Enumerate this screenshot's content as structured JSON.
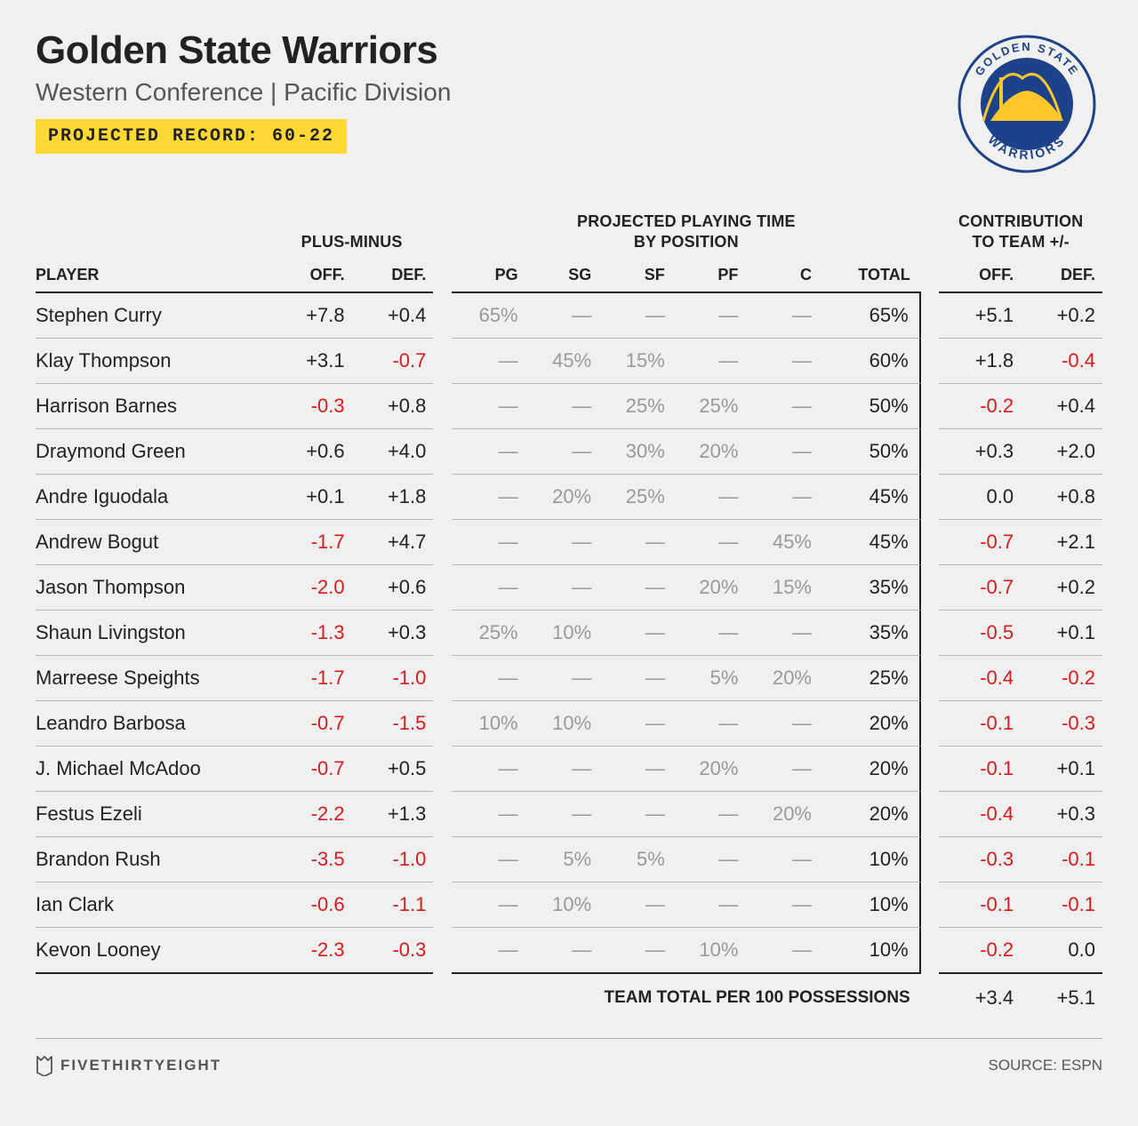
{
  "header": {
    "team_name": "Golden State Warriors",
    "subtitle": "Western Conference | Pacific Division",
    "record_label": "PROJECTED RECORD: 60-22",
    "logo": {
      "top_text": "GOLDEN STATE",
      "bottom_text": "WARRIORS",
      "primary_color": "#1d428a",
      "accent_color": "#ffc72c"
    }
  },
  "labels": {
    "plus_minus": "PLUS-MINUS",
    "playing_time": "PROJECTED PLAYING TIME BY POSITION",
    "contribution": "CONTRIBUTION TO TEAM +/-",
    "player": "PLAYER",
    "off": "OFF.",
    "def": "DEF.",
    "total": "TOTAL",
    "pg": "PG",
    "sg": "SG",
    "sf": "SF",
    "pf": "PF",
    "c": "C",
    "team_total": "TEAM TOTAL PER 100 POSSESSIONS"
  },
  "players": [
    {
      "name": "Stephen Curry",
      "pm_off": "+7.8",
      "pm_def": "+0.4",
      "pg": "65%",
      "sg": "—",
      "sf": "—",
      "pf": "—",
      "c": "—",
      "total": "65%",
      "c_off": "+5.1",
      "c_def": "+0.2"
    },
    {
      "name": "Klay Thompson",
      "pm_off": "+3.1",
      "pm_def": "-0.7",
      "pg": "—",
      "sg": "45%",
      "sf": "15%",
      "pf": "—",
      "c": "—",
      "total": "60%",
      "c_off": "+1.8",
      "c_def": "-0.4"
    },
    {
      "name": "Harrison Barnes",
      "pm_off": "-0.3",
      "pm_def": "+0.8",
      "pg": "—",
      "sg": "—",
      "sf": "25%",
      "pf": "25%",
      "c": "—",
      "total": "50%",
      "c_off": "-0.2",
      "c_def": "+0.4"
    },
    {
      "name": "Draymond Green",
      "pm_off": "+0.6",
      "pm_def": "+4.0",
      "pg": "—",
      "sg": "—",
      "sf": "30%",
      "pf": "20%",
      "c": "—",
      "total": "50%",
      "c_off": "+0.3",
      "c_def": "+2.0"
    },
    {
      "name": "Andre Iguodala",
      "pm_off": "+0.1",
      "pm_def": "+1.8",
      "pg": "—",
      "sg": "20%",
      "sf": "25%",
      "pf": "—",
      "c": "—",
      "total": "45%",
      "c_off": "0.0",
      "c_def": "+0.8"
    },
    {
      "name": "Andrew Bogut",
      "pm_off": "-1.7",
      "pm_def": "+4.7",
      "pg": "—",
      "sg": "—",
      "sf": "—",
      "pf": "—",
      "c": "45%",
      "total": "45%",
      "c_off": "-0.7",
      "c_def": "+2.1"
    },
    {
      "name": "Jason Thompson",
      "pm_off": "-2.0",
      "pm_def": "+0.6",
      "pg": "—",
      "sg": "—",
      "sf": "—",
      "pf": "20%",
      "c": "15%",
      "total": "35%",
      "c_off": "-0.7",
      "c_def": "+0.2"
    },
    {
      "name": "Shaun Livingston",
      "pm_off": "-1.3",
      "pm_def": "+0.3",
      "pg": "25%",
      "sg": "10%",
      "sf": "—",
      "pf": "—",
      "c": "—",
      "total": "35%",
      "c_off": "-0.5",
      "c_def": "+0.1"
    },
    {
      "name": "Marreese Speights",
      "pm_off": "-1.7",
      "pm_def": "-1.0",
      "pg": "—",
      "sg": "—",
      "sf": "—",
      "pf": "5%",
      "c": "20%",
      "total": "25%",
      "c_off": "-0.4",
      "c_def": "-0.2"
    },
    {
      "name": "Leandro Barbosa",
      "pm_off": "-0.7",
      "pm_def": "-1.5",
      "pg": "10%",
      "sg": "10%",
      "sf": "—",
      "pf": "—",
      "c": "—",
      "total": "20%",
      "c_off": "-0.1",
      "c_def": "-0.3"
    },
    {
      "name": "J. Michael McAdoo",
      "pm_off": "-0.7",
      "pm_def": "+0.5",
      "pg": "—",
      "sg": "—",
      "sf": "—",
      "pf": "20%",
      "c": "—",
      "total": "20%",
      "c_off": "-0.1",
      "c_def": "+0.1"
    },
    {
      "name": "Festus Ezeli",
      "pm_off": "-2.2",
      "pm_def": "+1.3",
      "pg": "—",
      "sg": "—",
      "sf": "—",
      "pf": "—",
      "c": "20%",
      "total": "20%",
      "c_off": "-0.4",
      "c_def": "+0.3"
    },
    {
      "name": "Brandon Rush",
      "pm_off": "-3.5",
      "pm_def": "-1.0",
      "pg": "—",
      "sg": "5%",
      "sf": "5%",
      "pf": "—",
      "c": "—",
      "total": "10%",
      "c_off": "-0.3",
      "c_def": "-0.1"
    },
    {
      "name": "Ian Clark",
      "pm_off": "-0.6",
      "pm_def": "-1.1",
      "pg": "—",
      "sg": "10%",
      "sf": "—",
      "pf": "—",
      "c": "—",
      "total": "10%",
      "c_off": "-0.1",
      "c_def": "-0.1"
    },
    {
      "name": "Kevon Looney",
      "pm_off": "-2.3",
      "pm_def": "-0.3",
      "pg": "—",
      "sg": "—",
      "sf": "—",
      "pf": "10%",
      "c": "—",
      "total": "10%",
      "c_off": "-0.2",
      "c_def": "0.0"
    }
  ],
  "team_total": {
    "off": "+3.4",
    "def": "+5.1"
  },
  "footer": {
    "brand": "FIVETHIRTYEIGHT",
    "source": "SOURCE: ESPN"
  }
}
